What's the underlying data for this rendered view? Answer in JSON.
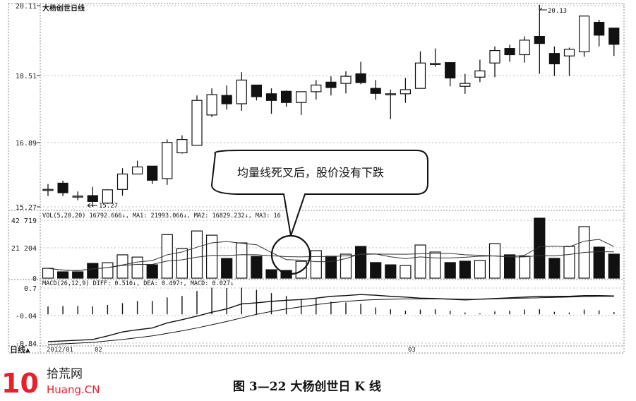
{
  "chart_data": {
    "type": "candlestick",
    "title": "大杨创世日线",
    "caption": "图 3—22   大杨创世日 K 线",
    "price_panel": {
      "y_ticks": [
        "20.11",
        "18.51",
        "16.89",
        "15.27"
      ],
      "ylim": [
        15.27,
        20.11
      ],
      "annotations": {
        "high": "20.13",
        "low": "15.27"
      },
      "candles": [
        [
          15.67,
          15.82,
          15.53,
          15.69
        ],
        [
          15.84,
          15.9,
          15.53,
          15.61
        ],
        [
          15.53,
          15.64,
          15.43,
          15.53
        ],
        [
          15.54,
          15.75,
          15.27,
          15.4
        ],
        [
          15.36,
          15.69,
          15.34,
          15.68
        ],
        [
          15.69,
          16.2,
          15.54,
          16.06
        ],
        [
          16.06,
          16.38,
          16.06,
          16.23
        ],
        [
          16.25,
          16.25,
          15.82,
          15.91
        ],
        [
          15.95,
          16.89,
          15.8,
          16.82
        ],
        [
          16.57,
          16.99,
          16.55,
          16.89
        ],
        [
          16.75,
          17.95,
          16.75,
          17.83
        ],
        [
          17.48,
          18.12,
          17.43,
          17.97
        ],
        [
          17.95,
          18.19,
          17.61,
          17.75
        ],
        [
          17.75,
          18.51,
          17.58,
          18.32
        ],
        [
          18.2,
          18.2,
          17.83,
          17.92
        ],
        [
          17.99,
          18.12,
          17.51,
          17.83
        ],
        [
          18.05,
          18.07,
          17.68,
          17.78
        ],
        [
          17.78,
          18.04,
          17.48,
          18.04
        ],
        [
          18.04,
          18.32,
          17.85,
          18.2
        ],
        [
          18.27,
          18.41,
          17.95,
          18.14
        ],
        [
          18.24,
          18.53,
          18.0,
          18.41
        ],
        [
          18.47,
          18.76,
          18.22,
          18.26
        ],
        [
          18.12,
          18.32,
          17.85,
          18.0
        ],
        [
          17.99,
          18.09,
          17.38,
          17.99
        ],
        [
          17.99,
          18.37,
          17.77,
          18.09
        ],
        [
          18.12,
          19.01,
          18.12,
          18.73
        ],
        [
          18.72,
          19.08,
          18.64,
          18.72
        ],
        [
          18.74,
          18.74,
          18.17,
          18.37
        ],
        [
          18.17,
          18.47,
          17.99,
          18.24
        ],
        [
          18.39,
          18.81,
          18.27,
          18.54
        ],
        [
          18.73,
          19.13,
          18.39,
          19.03
        ],
        [
          19.08,
          19.17,
          18.76,
          18.93
        ],
        [
          18.93,
          19.37,
          18.74,
          19.28
        ],
        [
          19.37,
          20.13,
          18.47,
          19.2
        ],
        [
          18.96,
          19.13,
          18.42,
          18.71
        ],
        [
          18.9,
          19.1,
          18.42,
          19.06
        ],
        [
          19.0,
          19.87,
          18.88,
          19.86
        ],
        [
          19.71,
          19.77,
          19.13,
          19.4
        ],
        [
          19.57,
          19.57,
          18.9,
          19.18
        ]
      ],
      "candle_format": [
        "open",
        "high",
        "low",
        "close"
      ]
    },
    "volume_panel": {
      "label": "VOL(5,20,20)  16792.666↓, MA1: 21993.066↓, MA2: 16829.232↓, MA3: 16",
      "y_ticks": [
        "42 719",
        "21 204",
        "0"
      ],
      "ylim": [
        0,
        42719
      ],
      "values": [
        7000,
        4500,
        4500,
        10500,
        11000,
        16600,
        15000,
        9500,
        31000,
        21000,
        33600,
        30600,
        14000,
        25100,
        15500,
        6000,
        5500,
        12000,
        19600,
        15600,
        17100,
        22600,
        11100,
        9500,
        9000,
        23600,
        18600,
        11100,
        12100,
        12600,
        24600,
        16600,
        15600,
        42700,
        14100,
        22600,
        36700,
        22100,
        17100
      ],
      "down": [
        0,
        1,
        1,
        1,
        0,
        0,
        0,
        1,
        0,
        0,
        0,
        0,
        1,
        0,
        1,
        1,
        1,
        0,
        0,
        1,
        0,
        1,
        1,
        1,
        0,
        0,
        0,
        1,
        1,
        0,
        0,
        1,
        0,
        1,
        1,
        0,
        0,
        1,
        1
      ]
    },
    "macd_panel": {
      "label": "MACD(26,12,9) DIFF: 0.510↓, DEA: 0.497↑, MACD: 0.027↓",
      "y_ticks": [
        "0.7",
        "-0.04",
        "-0.84"
      ],
      "ylim": [
        -0.84,
        0.77
      ],
      "histogram": [
        0.22,
        0.23,
        0.23,
        0.22,
        0.26,
        0.31,
        0.37,
        0.37,
        0.47,
        0.51,
        0.65,
        0.74,
        0.73,
        0.74,
        0.68,
        0.59,
        0.51,
        0.43,
        0.44,
        0.35,
        0.33,
        0.29,
        0.19,
        0.14,
        0.1,
        0.13,
        0.14,
        0.1,
        0.05,
        0.03,
        0.08,
        0.1,
        0.13,
        0.14,
        0.07,
        0.05,
        0.13,
        0.11,
        0.06
      ],
      "diff": [
        -0.76,
        -0.74,
        -0.72,
        -0.7,
        -0.6,
        -0.49,
        -0.43,
        -0.38,
        -0.24,
        -0.15,
        -0.05,
        0.06,
        0.15,
        0.29,
        0.32,
        0.36,
        0.39,
        0.41,
        0.45,
        0.5,
        0.52,
        0.55,
        0.53,
        0.5,
        0.48,
        0.45,
        0.44,
        0.42,
        0.4,
        0.42,
        0.44,
        0.46,
        0.48,
        0.5,
        0.5,
        0.5,
        0.52,
        0.52,
        0.51
      ],
      "dea": [
        -0.84,
        -0.82,
        -0.8,
        -0.78,
        -0.74,
        -0.7,
        -0.65,
        -0.6,
        -0.53,
        -0.46,
        -0.38,
        -0.29,
        -0.2,
        -0.1,
        0.0,
        0.08,
        0.15,
        0.21,
        0.27,
        0.32,
        0.36,
        0.39,
        0.41,
        0.42,
        0.43,
        0.43,
        0.43,
        0.43,
        0.42,
        0.42,
        0.43,
        0.44,
        0.45,
        0.46,
        0.47,
        0.48,
        0.49,
        0.5,
        0.5
      ]
    },
    "x_axis": {
      "period": "日线▲",
      "labels": [
        "2012/01",
        "02",
        "03"
      ]
    },
    "callout_text": "均量线死叉后，股价没有下跌",
    "colors": {
      "up": "#ffffff",
      "down": "#111111",
      "line": "#111111",
      "logo": "#e8202a"
    }
  },
  "logo": {
    "cn": "拾荒网",
    "en": "Huang.CN",
    "num": "10"
  }
}
